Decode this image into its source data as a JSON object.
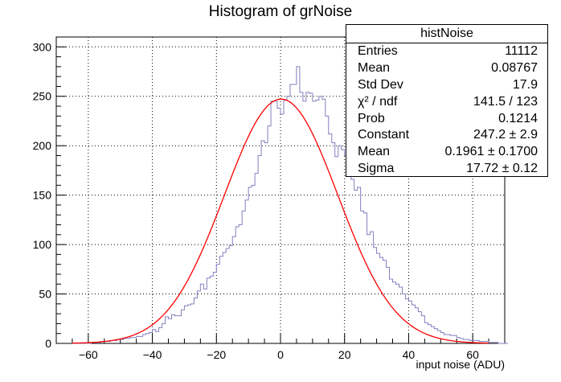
{
  "chart_data": {
    "type": "histogram",
    "title": "Histogram of grNoise",
    "xlabel": "input noise (ADU)",
    "ylabel": "",
    "xlim": [
      -70,
      70
    ],
    "ylim": [
      0,
      310
    ],
    "xticks": [
      -60,
      -40,
      -20,
      0,
      20,
      40,
      60
    ],
    "yticks": [
      0,
      50,
      100,
      150,
      200,
      250,
      300
    ],
    "grid": true,
    "bin_width": 1,
    "bin_start": -65,
    "counts": [
      0,
      0,
      0,
      0,
      0,
      0,
      1,
      1,
      1,
      2,
      2,
      2,
      3,
      3,
      4,
      4,
      5,
      5,
      6,
      6,
      7,
      7,
      9,
      10,
      11,
      14,
      12,
      16,
      20,
      27,
      25,
      29,
      28,
      28,
      34,
      38,
      39,
      40,
      46,
      53,
      60,
      55,
      66,
      68,
      72,
      80,
      88,
      92,
      96,
      99,
      108,
      118,
      120,
      134,
      145,
      158,
      160,
      172,
      190,
      205,
      203,
      220,
      245,
      245,
      238,
      232,
      246,
      250,
      262,
      262,
      280,
      254,
      245,
      254,
      253,
      245,
      246,
      250,
      247,
      230,
      212,
      203,
      189,
      200,
      196,
      190,
      178,
      166,
      155,
      158,
      134,
      132,
      110,
      113,
      97,
      91,
      87,
      84,
      77,
      65,
      62,
      60,
      57,
      50,
      45,
      43,
      39,
      36,
      32,
      28,
      21,
      19,
      17,
      15,
      13,
      11,
      9,
      9,
      8,
      8,
      6,
      5,
      4,
      4,
      3,
      3,
      3,
      2,
      2,
      2,
      1,
      1,
      1,
      0,
      0,
      0
    ],
    "series": [
      {
        "name": "histNoise",
        "type": "step",
        "color": "#8080c0"
      },
      {
        "name": "",
        "type": "gaussian_fit",
        "constant": 247.2,
        "mean": 0.1961,
        "sigma": 17.72,
        "color": "#ff0000"
      }
    ],
    "legend": "top-right"
  },
  "stats": {
    "name": "histNoise",
    "rows": [
      {
        "key": "Entries",
        "value": "11112"
      },
      {
        "key": "Mean",
        "value": "0.08767"
      },
      {
        "key": "Std Dev",
        "value": "17.9"
      },
      {
        "key": "χ² / ndf",
        "value": "141.5 / 123"
      },
      {
        "key": "Prob",
        "value": "0.1214"
      },
      {
        "key": "Constant",
        "value": "247.2 ± 2.9"
      },
      {
        "key": "Mean",
        "value": "0.1961 ± 0.1700"
      },
      {
        "key": "Sigma",
        "value": "17.72 ± 0.12"
      }
    ]
  }
}
